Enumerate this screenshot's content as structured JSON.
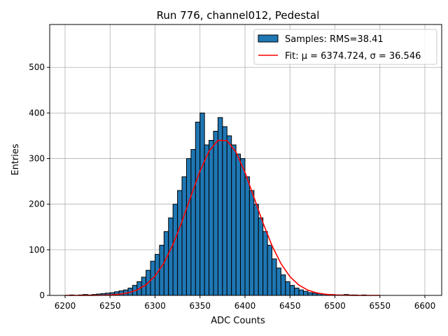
{
  "chart_data": {
    "type": "histogram",
    "title": "Run 776, channel012, Pedestal",
    "xlabel": "ADC Counts",
    "ylabel": "Entries",
    "xlim": [
      6182.9,
      6618.7
    ],
    "ylim": [
      0,
      594
    ],
    "xticks": [
      6200,
      6250,
      6300,
      6350,
      6400,
      6450,
      6500,
      6550,
      6600
    ],
    "yticks": [
      0,
      100,
      200,
      300,
      400,
      500
    ],
    "grid": true,
    "legend": "upper right",
    "series": [
      {
        "name": "Samples: RMS=38.41",
        "type": "histogram",
        "color": "#1f77b4",
        "edgecolor": "#000000",
        "bins": [
          6200,
          6205,
          6210,
          6215,
          6220,
          6225,
          6230,
          6235,
          6240,
          6245,
          6250,
          6255,
          6260,
          6265,
          6270,
          6275,
          6280,
          6285,
          6290,
          6295,
          6300,
          6305,
          6310,
          6315,
          6320,
          6325,
          6330,
          6335,
          6340,
          6345,
          6350,
          6355,
          6360,
          6365,
          6370,
          6375,
          6380,
          6385,
          6390,
          6395,
          6400,
          6405,
          6410,
          6415,
          6420,
          6425,
          6430,
          6435,
          6440,
          6445,
          6450,
          6455,
          6460,
          6465,
          6470,
          6475,
          6480,
          6485,
          6490,
          6495,
          6500,
          6505,
          6510,
          6515,
          6520,
          6525,
          6530,
          6535,
          6540,
          6545,
          6550
        ],
        "values": [
          0,
          1,
          0,
          1,
          2,
          1,
          2,
          3,
          4,
          5,
          6,
          8,
          10,
          12,
          16,
          22,
          30,
          40,
          55,
          75,
          90,
          110,
          140,
          170,
          200,
          230,
          260,
          300,
          320,
          380,
          400,
          330,
          340,
          360,
          390,
          370,
          350,
          330,
          310,
          300,
          260,
          230,
          200,
          170,
          140,
          110,
          80,
          60,
          45,
          30,
          22,
          16,
          12,
          9,
          6,
          5,
          4,
          3,
          2,
          2,
          1,
          1,
          2,
          1,
          1,
          0,
          1,
          0,
          0,
          0
        ]
      },
      {
        "name": "Fit: μ = 6374.724, σ = 36.546",
        "type": "line",
        "color": "#ff0000",
        "x": [
          6200,
          6210,
          6220,
          6230,
          6240,
          6250,
          6260,
          6270,
          6280,
          6290,
          6300,
          6310,
          6320,
          6330,
          6340,
          6350,
          6360,
          6370,
          6380,
          6390,
          6400,
          6410,
          6420,
          6430,
          6440,
          6450,
          6460,
          6470,
          6480,
          6490,
          6500,
          6510,
          6520,
          6530,
          6540,
          6550
        ],
        "values": [
          0,
          0,
          0.04,
          0.13,
          0.38,
          1.0,
          2.5,
          5.6,
          11.9,
          23.3,
          42.4,
          71.5,
          111.8,
          162.2,
          218.2,
          272.5,
          316.3,
          340.1,
          339.4,
          314.3,
          269.8,
          215,
          159,
          109.3,
          69.6,
          41.1,
          22.5,
          11.4,
          5.4,
          2.4,
          1.0,
          0.4,
          0.1,
          0,
          0,
          0
        ]
      }
    ]
  }
}
